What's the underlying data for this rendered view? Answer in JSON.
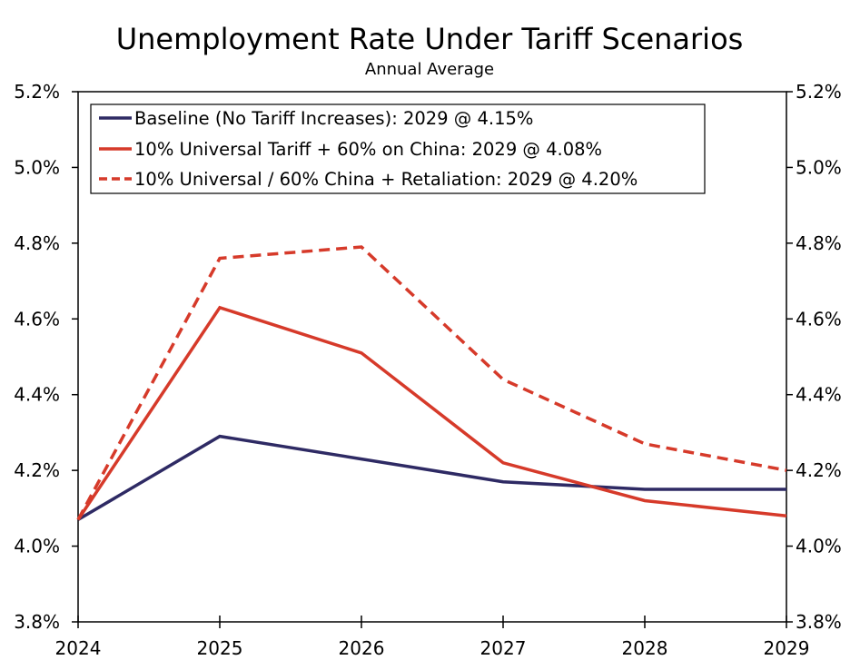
{
  "chart_data": {
    "type": "line",
    "title": "Unemployment Rate Under Tariff Scenarios",
    "subtitle": "Annual Average",
    "xlabel": "",
    "ylabel": "",
    "x": [
      "2024",
      "2025",
      "2026",
      "2027",
      "2028",
      "2029"
    ],
    "ylim": [
      3.8,
      5.2
    ],
    "yticks": [
      "3.8%",
      "4.0%",
      "4.2%",
      "4.4%",
      "4.6%",
      "4.8%",
      "5.0%",
      "5.2%"
    ],
    "ytick_values": [
      3.8,
      4.0,
      4.2,
      4.4,
      4.6,
      4.8,
      5.0,
      5.2
    ],
    "grid": false,
    "legend_position": "top-left",
    "series": [
      {
        "name": "Baseline (No Tariff Increases): 2029 @ 4.15%",
        "values": [
          4.07,
          4.29,
          4.23,
          4.17,
          4.15,
          4.15
        ],
        "color": "#2e2a64",
        "style": "solid"
      },
      {
        "name": "10% Universal Tariff + 60% on China: 2029 @ 4.08%",
        "values": [
          4.07,
          4.63,
          4.51,
          4.22,
          4.12,
          4.08
        ],
        "color": "#d63a2a",
        "style": "solid"
      },
      {
        "name": "10% Universal / 60% China + Retaliation: 2029 @ 4.20%",
        "values": [
          4.07,
          4.76,
          4.79,
          4.44,
          4.27,
          4.2
        ],
        "color": "#d63a2a",
        "style": "dashed"
      }
    ]
  }
}
